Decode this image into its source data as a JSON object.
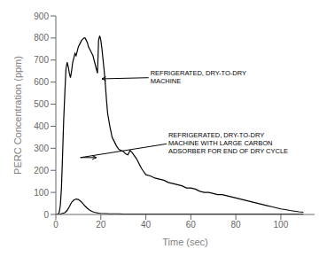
{
  "chart_data": {
    "type": "line",
    "title": "",
    "xlabel": "Time (sec)",
    "ylabel": "PERC Concentration (ppm)",
    "xlim": [
      0,
      115
    ],
    "ylim": [
      0,
      900
    ],
    "xticks": [
      0,
      20,
      40,
      60,
      80,
      100
    ],
    "yticks": [
      0,
      100,
      200,
      300,
      400,
      500,
      600,
      700,
      800,
      900
    ],
    "grid": false,
    "series": [
      {
        "color": "#000000",
        "x": [
          0.0,
          0.5,
          1.0,
          1.5,
          2.0,
          2.5,
          3.0,
          3.5,
          4.0,
          4.5,
          5.0,
          5.5,
          6.0,
          6.5,
          7.0,
          7.5,
          8.0,
          8.5,
          9.0,
          9.5,
          10.0,
          10.5,
          11.0,
          11.5,
          12.0,
          12.5,
          13.0,
          13.5,
          14.0,
          14.5,
          15.0,
          15.5,
          16.0,
          16.5,
          17.0,
          17.5,
          18.0,
          18.5,
          19.0,
          19.5,
          20.0,
          20.5,
          21.0,
          21.5,
          22.0,
          22.5,
          23.0,
          24.0,
          25.0,
          26.0,
          27.0,
          28.0,
          29.0,
          30.0,
          31.0,
          32.0,
          33.0,
          34.0,
          35.0,
          36.0,
          37.0,
          38.0,
          39.0,
          40.0,
          42.0,
          44.0,
          46.0,
          48.0,
          50.0,
          52.0,
          54.0,
          56.0,
          58.0,
          60.0,
          62.0,
          64.0,
          66.0,
          68.0,
          70.0,
          72.0,
          74.0,
          76.0,
          78.0,
          80.0,
          82.0,
          84.0,
          86.0,
          88.0,
          90.0,
          92.0,
          94.0,
          96.0,
          98.0,
          100.0,
          102.0,
          104.0,
          106.0,
          108.0,
          110.0
        ],
        "values": [
          0,
          0,
          0,
          10,
          40,
          120,
          270,
          430,
          550,
          660,
          690,
          670,
          640,
          620,
          650,
          690,
          710,
          730,
          720,
          740,
          760,
          770,
          780,
          790,
          795,
          800,
          800,
          790,
          780,
          760,
          750,
          740,
          730,
          720,
          700,
          680,
          660,
          640,
          790,
          810,
          790,
          750,
          700,
          650,
          590,
          520,
          460,
          400,
          350,
          330,
          310,
          295,
          290,
          285,
          275,
          270,
          290,
          280,
          265,
          250,
          230,
          210,
          195,
          180,
          175,
          165,
          160,
          155,
          145,
          140,
          135,
          130,
          120,
          120,
          115,
          105,
          100,
          100,
          95,
          90,
          90,
          85,
          80,
          75,
          70,
          65,
          60,
          55,
          50,
          45,
          40,
          35,
          30,
          25,
          22,
          18,
          15,
          12,
          10
        ]
      },
      {
        "color": "#000000",
        "x": [
          0.0,
          1.0,
          2.0,
          3.0,
          4.0,
          5.0,
          6.0,
          7.0,
          8.0,
          9.0,
          10.0,
          11.0,
          12.0,
          13.0,
          14.0,
          15.0,
          16.0,
          17.0,
          18.0,
          19.0,
          20.0,
          22.0,
          24.0,
          26.0,
          28.0,
          30.0,
          35.0,
          40.0,
          45.0,
          50.0,
          55.0,
          60.0,
          65.0,
          70.0,
          75.0,
          80.0,
          85.0,
          90.0,
          95.0,
          100.0,
          105.0,
          110.0
        ],
        "values": [
          0,
          0,
          2,
          5,
          8,
          18,
          35,
          55,
          65,
          70,
          68,
          60,
          50,
          38,
          28,
          20,
          14,
          10,
          8,
          6,
          5,
          4,
          3,
          3,
          3,
          2,
          2,
          2,
          2,
          2,
          2,
          2,
          2,
          2,
          2,
          2,
          2,
          2,
          2,
          2,
          2,
          2
        ]
      }
    ],
    "annotations": [
      {
        "text": "REFRIGERATED, DRY-TO-DRY\nMACHINE",
        "xy": [
          20.5,
          615
        ],
        "xytext": [
          42,
          620
        ]
      },
      {
        "text": "REFRIGERATED, DRY-TO-DRY\nMACHINE WITH LARGE CARBON\nADSORBER FOR END OF DRY CYCLE",
        "xy": [
          18,
          258
        ],
        "xytext": [
          50,
          320
        ]
      }
    ]
  }
}
